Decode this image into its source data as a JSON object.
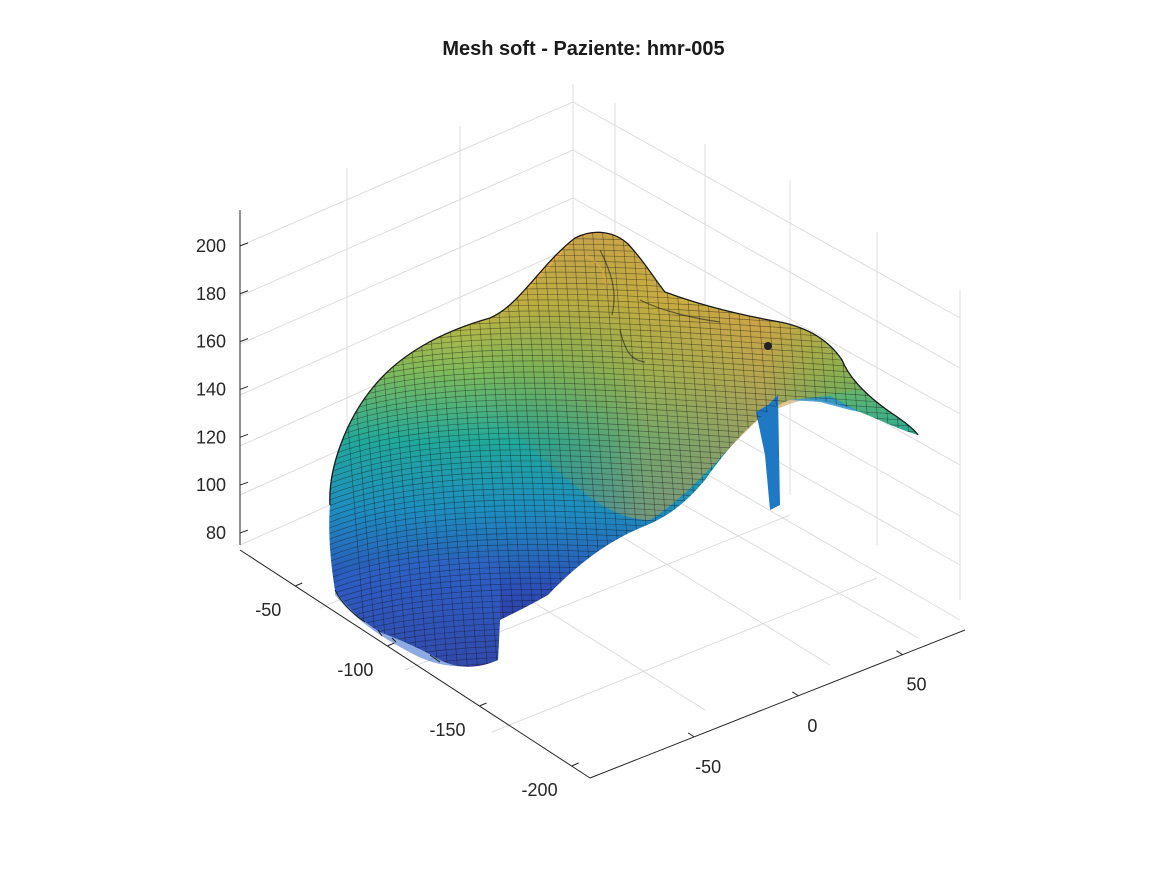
{
  "chart_data": {
    "type": "surface",
    "title": "Mesh soft - Paziente: hmr-005",
    "colormap": "parula",
    "z_axis": {
      "ticks": [
        80,
        100,
        120,
        140,
        160,
        180,
        200
      ],
      "range": [
        75,
        215
      ]
    },
    "y_axis": {
      "ticks": [
        -50,
        -100,
        -150,
        -200
      ],
      "range": [
        -210,
        -20
      ]
    },
    "x_axis": {
      "ticks": [
        -50,
        0,
        50
      ],
      "range": [
        -100,
        80
      ]
    },
    "grid": true,
    "colors": {
      "low": "#352a87",
      "mid": "#21b1a3",
      "high": "#f9fb0e",
      "edge": "#111111"
    }
  }
}
